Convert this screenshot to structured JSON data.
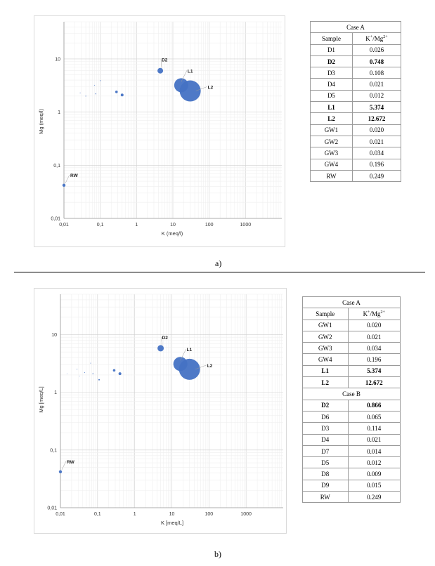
{
  "panels": [
    {
      "caption": "a)",
      "table": {
        "header": "Case A",
        "col1": "Sample",
        "col2_main": "K",
        "col2_sup1": "+",
        "col2_mid": "/Mg",
        "col2_sup2": "2+",
        "groups": [
          {
            "title": null,
            "rows": [
              {
                "sample": "D1",
                "value": "0.026",
                "bold": false
              },
              {
                "sample": "D2",
                "value": "0.748",
                "bold": true
              },
              {
                "sample": "D3",
                "value": "0.108",
                "bold": false
              },
              {
                "sample": "D4",
                "value": "0.021",
                "bold": false
              },
              {
                "sample": "D5",
                "value": "0.012",
                "bold": false
              },
              {
                "sample": "L1",
                "value": "5.374",
                "bold": true
              },
              {
                "sample": "L2",
                "value": "12.672",
                "bold": true
              },
              {
                "sample": "GW1",
                "value": "0.020",
                "bold": false
              },
              {
                "sample": "GW2",
                "value": "0.021",
                "bold": false
              },
              {
                "sample": "GW3",
                "value": "0.034",
                "bold": false
              },
              {
                "sample": "GW4",
                "value": "0.196",
                "bold": false
              },
              {
                "sample": "RW",
                "value": "0.249",
                "bold": false
              }
            ]
          }
        ]
      }
    },
    {
      "caption": "b)",
      "table": {
        "header": "Case A",
        "col1": "Sample",
        "col2_main": "K",
        "col2_sup1": "+",
        "col2_mid": "/Mg",
        "col2_sup2": "2+",
        "groups": [
          {
            "title": null,
            "rows": [
              {
                "sample": "GW1",
                "value": "0.020",
                "bold": false
              },
              {
                "sample": "GW2",
                "value": "0.021",
                "bold": false
              },
              {
                "sample": "GW3",
                "value": "0.034",
                "bold": false
              },
              {
                "sample": "GW4",
                "value": "0.196",
                "bold": false
              },
              {
                "sample": "L1",
                "value": "5.374",
                "bold": true
              },
              {
                "sample": "L2",
                "value": "12.672",
                "bold": true
              }
            ]
          },
          {
            "title": "Case B",
            "rows": [
              {
                "sample": "D2",
                "value": "0.866",
                "bold": true
              },
              {
                "sample": "D6",
                "value": "0.065",
                "bold": false
              },
              {
                "sample": "D3",
                "value": "0.114",
                "bold": false
              },
              {
                "sample": "D4",
                "value": "0.021",
                "bold": false
              },
              {
                "sample": "D7",
                "value": "0.014",
                "bold": false
              },
              {
                "sample": "D5",
                "value": "0.012",
                "bold": false
              },
              {
                "sample": "D8",
                "value": "0.009",
                "bold": false
              },
              {
                "sample": "D9",
                "value": "0.015",
                "bold": false
              },
              {
                "sample": "RW",
                "value": "0.249",
                "bold": false
              }
            ]
          }
        ]
      }
    }
  ],
  "chart_data": [
    {
      "type": "scatter",
      "subtype": "bubble",
      "title": "",
      "xlabel": "K (meq/l)",
      "ylabel": "Mg (meq/l)",
      "x_scale": "log",
      "y_scale": "log",
      "xlim": [
        0.01,
        10000
      ],
      "ylim": [
        0.01,
        50
      ],
      "x_ticks": [
        "0,01",
        "0,1",
        "1",
        "10",
        "100",
        "1000"
      ],
      "y_ticks": [
        "0,01",
        "0,1",
        "1",
        "10"
      ],
      "grid": true,
      "color": "#4472c4",
      "points": [
        {
          "x": 0.01,
          "y": 0.042,
          "r": 2.2,
          "label": "RW"
        },
        {
          "x": 0.028,
          "y": 2.3,
          "r": 0.5,
          "label": ""
        },
        {
          "x": 0.04,
          "y": 2.0,
          "r": 0.6,
          "label": ""
        },
        {
          "x": 0.07,
          "y": 3.2,
          "r": 0.5,
          "label": ""
        },
        {
          "x": 0.075,
          "y": 2.2,
          "r": 0.7,
          "label": ""
        },
        {
          "x": 0.1,
          "y": 3.9,
          "r": 0.6,
          "label": ""
        },
        {
          "x": 0.28,
          "y": 2.4,
          "r": 1.8,
          "label": ""
        },
        {
          "x": 0.4,
          "y": 2.1,
          "r": 2.0,
          "label": ""
        },
        {
          "x": 4.5,
          "y": 6.0,
          "r": 4.0,
          "label": "D2"
        },
        {
          "x": 17,
          "y": 3.2,
          "r": 10,
          "label": "L1"
        },
        {
          "x": 30,
          "y": 2.5,
          "r": 15,
          "label": "L2"
        }
      ]
    },
    {
      "type": "scatter",
      "subtype": "bubble",
      "title": "",
      "xlabel": "K [meq/L]",
      "ylabel": "Mg [meq/L]",
      "x_scale": "log",
      "y_scale": "log",
      "xlim": [
        0.01,
        10000
      ],
      "ylim": [
        0.01,
        50
      ],
      "x_ticks": [
        "0,01",
        "0,1",
        "1",
        "10",
        "100",
        "1000"
      ],
      "y_ticks": [
        "0,01",
        "0,1",
        "1",
        "10"
      ],
      "grid": true,
      "color": "#4472c4",
      "points": [
        {
          "x": 0.01,
          "y": 0.042,
          "r": 2.2,
          "label": "RW"
        },
        {
          "x": 0.015,
          "y": 2.1,
          "r": 0.4,
          "label": ""
        },
        {
          "x": 0.028,
          "y": 2.5,
          "r": 0.5,
          "label": ""
        },
        {
          "x": 0.033,
          "y": 1.9,
          "r": 0.4,
          "label": ""
        },
        {
          "x": 0.045,
          "y": 2.2,
          "r": 0.5,
          "label": ""
        },
        {
          "x": 0.065,
          "y": 3.2,
          "r": 0.5,
          "label": ""
        },
        {
          "x": 0.075,
          "y": 2.1,
          "r": 0.7,
          "label": ""
        },
        {
          "x": 0.11,
          "y": 1.65,
          "r": 1.0,
          "label": ""
        },
        {
          "x": 0.28,
          "y": 2.4,
          "r": 1.8,
          "label": ""
        },
        {
          "x": 0.4,
          "y": 2.1,
          "r": 2.0,
          "label": ""
        },
        {
          "x": 5,
          "y": 5.8,
          "r": 4.5,
          "label": "D2"
        },
        {
          "x": 17,
          "y": 3.1,
          "r": 10,
          "label": "L1"
        },
        {
          "x": 30,
          "y": 2.5,
          "r": 15,
          "label": "L2"
        }
      ]
    }
  ]
}
